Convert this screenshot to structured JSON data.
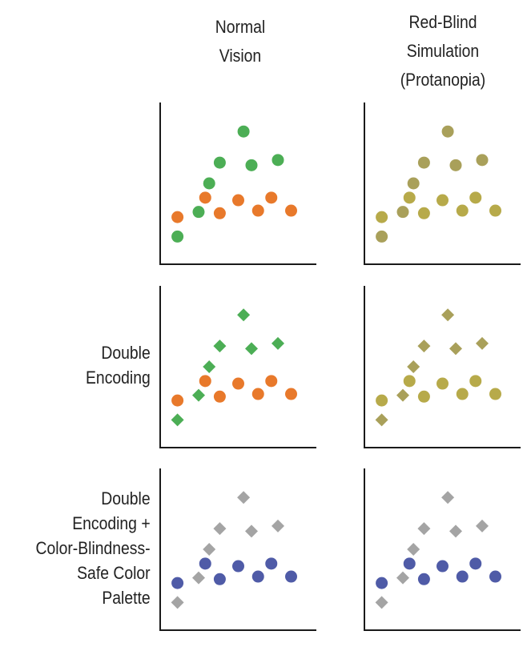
{
  "columns": [
    {
      "title_lines": [
        "Normal",
        "Vision"
      ]
    },
    {
      "title_lines": [
        "Red-Blind",
        "Simulation",
        "(Protanopia)"
      ]
    }
  ],
  "rows": [
    {
      "label_lines": []
    },
    {
      "label_lines": [
        "Double",
        "Encoding"
      ]
    },
    {
      "label_lines": [
        "Double",
        "Encoding +",
        "Color-Blindness-",
        "Safe Color",
        "Palette"
      ]
    }
  ],
  "chart_data": {
    "type": "scatter",
    "grid": false,
    "note_axes": "unlabeled axes",
    "xlim": [
      0,
      10
    ],
    "ylim": [
      0,
      10
    ],
    "groupA": [
      {
        "x": 0.4,
        "y": 0.9
      },
      {
        "x": 2.0,
        "y": 2.8
      },
      {
        "x": 2.8,
        "y": 5.0
      },
      {
        "x": 3.6,
        "y": 6.6
      },
      {
        "x": 5.4,
        "y": 9.0
      },
      {
        "x": 6.0,
        "y": 6.4
      },
      {
        "x": 8.0,
        "y": 6.8
      }
    ],
    "groupB": [
      {
        "x": 0.4,
        "y": 2.4
      },
      {
        "x": 2.5,
        "y": 3.9
      },
      {
        "x": 3.6,
        "y": 2.7
      },
      {
        "x": 5.0,
        "y": 3.7
      },
      {
        "x": 6.5,
        "y": 2.9
      },
      {
        "x": 7.5,
        "y": 3.9
      },
      {
        "x": 9.0,
        "y": 2.9
      }
    ],
    "panels": [
      {
        "row": 0,
        "col": 0,
        "groupA": {
          "shape": "circle",
          "color": "#4cae55"
        },
        "groupB": {
          "shape": "circle",
          "color": "#e8792b"
        }
      },
      {
        "row": 0,
        "col": 1,
        "groupA": {
          "shape": "circle",
          "color": "#a9a05a"
        },
        "groupB": {
          "shape": "circle",
          "color": "#b7aa4a"
        }
      },
      {
        "row": 1,
        "col": 0,
        "groupA": {
          "shape": "diamond",
          "color": "#4cae55"
        },
        "groupB": {
          "shape": "circle",
          "color": "#e8792b"
        }
      },
      {
        "row": 1,
        "col": 1,
        "groupA": {
          "shape": "diamond",
          "color": "#a9a05a"
        },
        "groupB": {
          "shape": "circle",
          "color": "#b7aa4a"
        }
      },
      {
        "row": 2,
        "col": 0,
        "groupA": {
          "shape": "diamond",
          "color": "#a4a4a4"
        },
        "groupB": {
          "shape": "circle",
          "color": "#4f5ba7"
        }
      },
      {
        "row": 2,
        "col": 1,
        "groupA": {
          "shape": "diamond",
          "color": "#a4a4a4"
        },
        "groupB": {
          "shape": "circle",
          "color": "#4f5ba7"
        }
      }
    ]
  }
}
